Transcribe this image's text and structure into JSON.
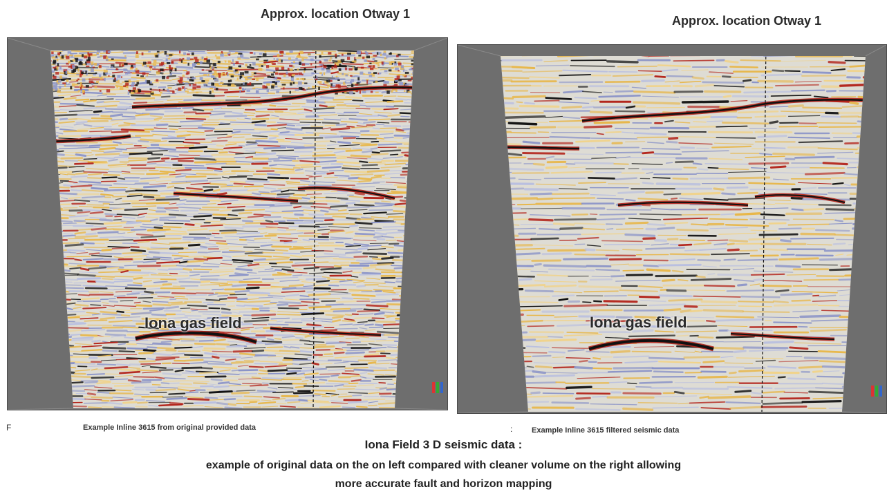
{
  "top_labels": {
    "left": "Approx. location Otway 1",
    "right": "Approx. location Otway 1"
  },
  "panels": {
    "left": {
      "field_label": "Iona gas field",
      "caption": "Example Inline 3615 from original provided data"
    },
    "right": {
      "field_label": "Iona gas field",
      "caption": "Example Inline 3615 filtered seismic data"
    }
  },
  "stray_marks": {
    "left": "F",
    "middle": ":"
  },
  "title": {
    "line1": "Iona Field 3 D seismic data :",
    "line2": "example of original data on the on left compared with cleaner volume on the right allowing",
    "line3": "more accurate fault and horizon mapping"
  },
  "colors": {
    "background": "#ffffff",
    "frame": "#6e6e6e",
    "seismic_red": "#b3231a",
    "seismic_black": "#111111",
    "seismic_yellow": "#e8b74a",
    "seismic_blue": "#8a93c8",
    "section_base": "#dedcd4"
  }
}
